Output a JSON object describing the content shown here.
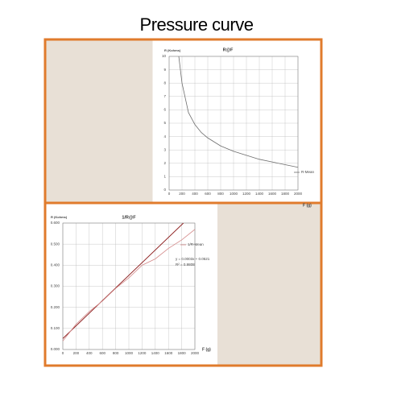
{
  "title": "Pressure curve",
  "chart_data": [
    {
      "type": "line",
      "title": "R@F",
      "y_label": "R (Kohms)",
      "x_label": "F (g)",
      "grid": true,
      "legend": "right",
      "xlim": [
        0,
        2000
      ],
      "xticks": [
        0,
        200,
        400,
        600,
        800,
        1000,
        1200,
        1400,
        1600,
        1800,
        2000
      ],
      "ylim": [
        0,
        10
      ],
      "yticks": [
        0,
        1,
        2,
        3,
        4,
        5,
        6,
        7,
        8,
        9,
        10
      ],
      "x": [
        150,
        200,
        300,
        400,
        500,
        600,
        800,
        1000,
        1200,
        1400,
        1600,
        1800,
        2000
      ],
      "series": [
        {
          "name": "R-Mean",
          "color": "#6d6d6d",
          "values": [
            10,
            8,
            5.8,
            4.9,
            4.3,
            3.9,
            3.3,
            2.9,
            2.6,
            2.3,
            2.1,
            1.9,
            1.7
          ]
        }
      ]
    },
    {
      "type": "line",
      "title": "1/R@F",
      "y_label": "R (Kohms)",
      "x_label": "F (g)",
      "grid": true,
      "legend": "right",
      "xlim": [
        0,
        2000
      ],
      "xticks": [
        0,
        200,
        400,
        600,
        800,
        1000,
        1200,
        1400,
        1600,
        1800,
        2000
      ],
      "ylim": [
        0,
        0.6
      ],
      "yticks": [
        {
          "value": 0,
          "label": "0.000"
        },
        {
          "value": 0.1,
          "label": "0.100"
        },
        {
          "value": 0.2,
          "label": "0.200"
        },
        {
          "value": 0.3,
          "label": "0.300"
        },
        {
          "value": 0.4,
          "label": "0.400"
        },
        {
          "value": 0.5,
          "label": "0.500"
        },
        {
          "value": 0.6,
          "label": "0.600"
        }
      ],
      "x": [
        0,
        200,
        400,
        600,
        800,
        1000,
        1200,
        1400,
        1600,
        1800,
        2000
      ],
      "series": [
        {
          "name": "1/R-Mean",
          "color": "#d48a8a",
          "values": [
            0.04,
            0.12,
            0.18,
            0.23,
            0.29,
            0.34,
            0.4,
            0.43,
            0.48,
            0.52,
            0.57
          ]
        }
      ],
      "trendline": {
        "color": "#8b1a1a",
        "x": [
          0,
          1826
        ],
        "values": [
          0.0521,
          0.6
        ]
      },
      "annotations": [
        "y = 0.0003x + 0.0521",
        "R² = 0.9808"
      ]
    }
  ]
}
